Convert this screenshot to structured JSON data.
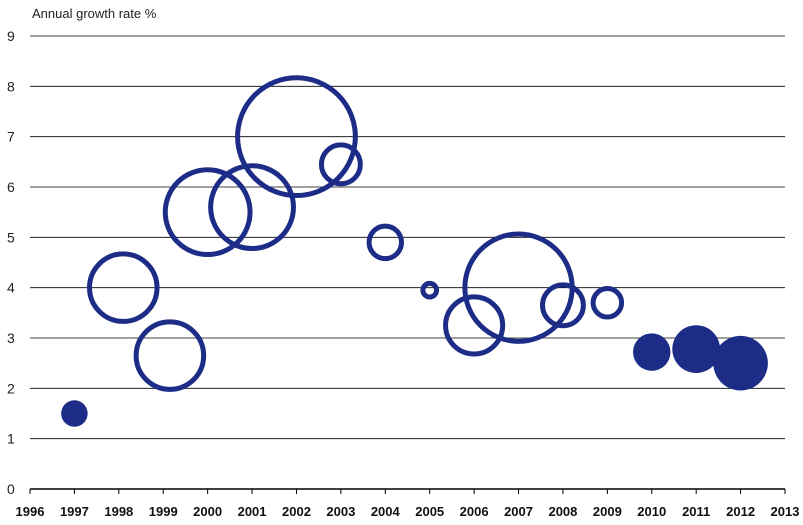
{
  "chart_data": {
    "type": "scatter",
    "subtype": "bubble",
    "title": "",
    "xlabel": "",
    "ylabel": "Annual growth rate %",
    "xlim": [
      1996,
      2013
    ],
    "ylim": [
      0,
      9
    ],
    "x_ticks": [
      1996,
      1997,
      1998,
      1999,
      2000,
      2001,
      2002,
      2003,
      2004,
      2005,
      2006,
      2007,
      2008,
      2009,
      2010,
      2011,
      2012,
      2013
    ],
    "y_ticks": [
      0,
      1,
      2,
      3,
      4,
      5,
      6,
      7,
      8,
      9
    ],
    "grid": "horizontal",
    "colors": {
      "series": "#1d2c86",
      "grid": "#000000",
      "axis": "#000000"
    },
    "points": [
      {
        "x": 1997,
        "y": 1.5,
        "size": 0.2,
        "filled": true
      },
      {
        "x": 1998.1,
        "y": 4.0,
        "size": 1.5,
        "filled": false
      },
      {
        "x": 1999.15,
        "y": 2.65,
        "size": 1.5,
        "filled": false
      },
      {
        "x": 2000,
        "y": 5.5,
        "size": 2.3,
        "filled": false
      },
      {
        "x": 2001,
        "y": 5.6,
        "size": 2.2,
        "filled": false
      },
      {
        "x": 2002,
        "y": 7.0,
        "size": 4.3,
        "filled": false
      },
      {
        "x": 2003,
        "y": 6.45,
        "size": 0.55,
        "filled": false
      },
      {
        "x": 2004,
        "y": 4.9,
        "size": 0.4,
        "filled": false
      },
      {
        "x": 2005,
        "y": 3.95,
        "size": 0.1,
        "filled": false
      },
      {
        "x": 2006,
        "y": 3.25,
        "size": 1.1,
        "filled": false
      },
      {
        "x": 2007,
        "y": 4.0,
        "size": 3.6,
        "filled": false
      },
      {
        "x": 2008,
        "y": 3.65,
        "size": 0.6,
        "filled": false
      },
      {
        "x": 2009,
        "y": 3.7,
        "size": 0.32,
        "filled": false
      },
      {
        "x": 2010,
        "y": 2.72,
        "size": 0.4,
        "filled": true
      },
      {
        "x": 2011,
        "y": 2.78,
        "size": 0.65,
        "filled": true
      },
      {
        "x": 2012,
        "y": 2.5,
        "size": 0.85,
        "filled": true
      }
    ]
  }
}
